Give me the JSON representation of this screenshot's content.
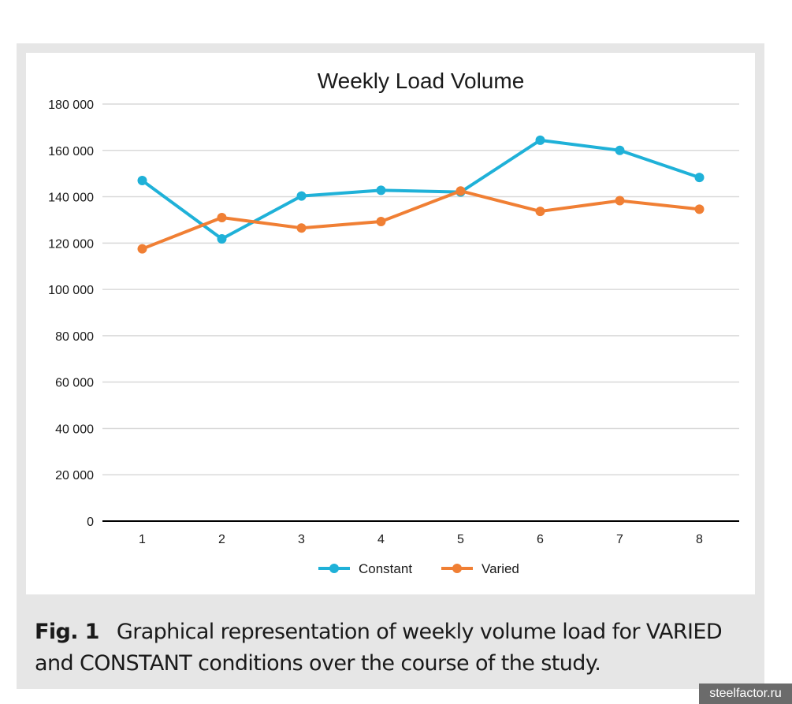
{
  "caption": {
    "fig_label": "Fig. 1",
    "text": "Graphical representation of weekly volume load for VARIED and CONSTANT conditions over the course of the study."
  },
  "watermark": "steelfactor.ru",
  "chart_data": {
    "type": "line",
    "title": "Weekly Load Volume",
    "xlabel": "",
    "ylabel": "",
    "x": [
      "1",
      "2",
      "3",
      "4",
      "5",
      "6",
      "7",
      "8"
    ],
    "ylim": [
      0,
      180000
    ],
    "yticks": [
      0,
      20000,
      40000,
      60000,
      80000,
      100000,
      120000,
      140000,
      160000,
      180000
    ],
    "ytick_labels": [
      "0",
      "20 000",
      "40 000",
      "60 000",
      "80 000",
      "100 000",
      "120 000",
      "140 000",
      "160 000",
      "180 000"
    ],
    "grid": true,
    "legend_position": "bottom",
    "series": [
      {
        "name": "Constant",
        "color": "#1fb1d8",
        "values": [
          147000,
          121800,
          140300,
          142800,
          142000,
          164400,
          160000,
          148300
        ]
      },
      {
        "name": "Varied",
        "color": "#f07f34",
        "values": [
          117500,
          131000,
          126500,
          129300,
          142500,
          133700,
          138300,
          134600
        ]
      }
    ]
  }
}
